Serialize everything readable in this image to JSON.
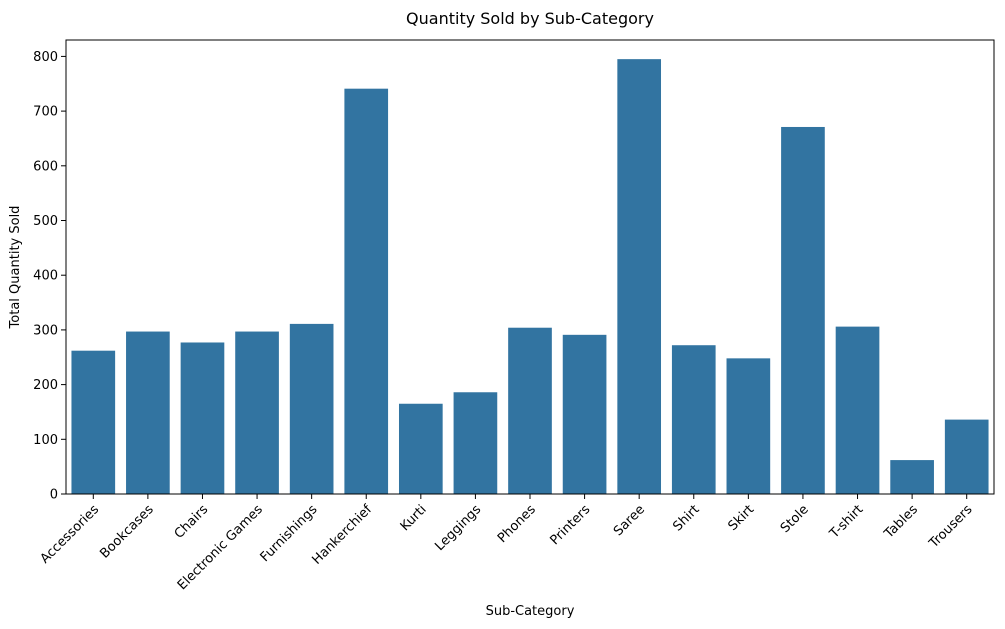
{
  "chart_data": {
    "type": "bar",
    "title": "Quantity Sold by Sub-Category",
    "xlabel": "Sub-Category",
    "ylabel": "Total Quantity Sold",
    "ylim": [
      0,
      830
    ],
    "yticks": [
      0,
      100,
      200,
      300,
      400,
      500,
      600,
      700,
      800
    ],
    "categories": [
      "Accessories",
      "Bookcases",
      "Chairs",
      "Electronic Games",
      "Furnishings",
      "Hankerchief",
      "Kurti",
      "Leggings",
      "Phones",
      "Printers",
      "Saree",
      "Shirt",
      "Skirt",
      "Stole",
      "T-shirt",
      "Tables",
      "Trousers"
    ],
    "values": [
      262,
      297,
      277,
      297,
      311,
      741,
      165,
      186,
      304,
      291,
      795,
      272,
      248,
      671,
      306,
      62,
      136
    ],
    "bar_color": "#3274a1",
    "grid": false
  }
}
